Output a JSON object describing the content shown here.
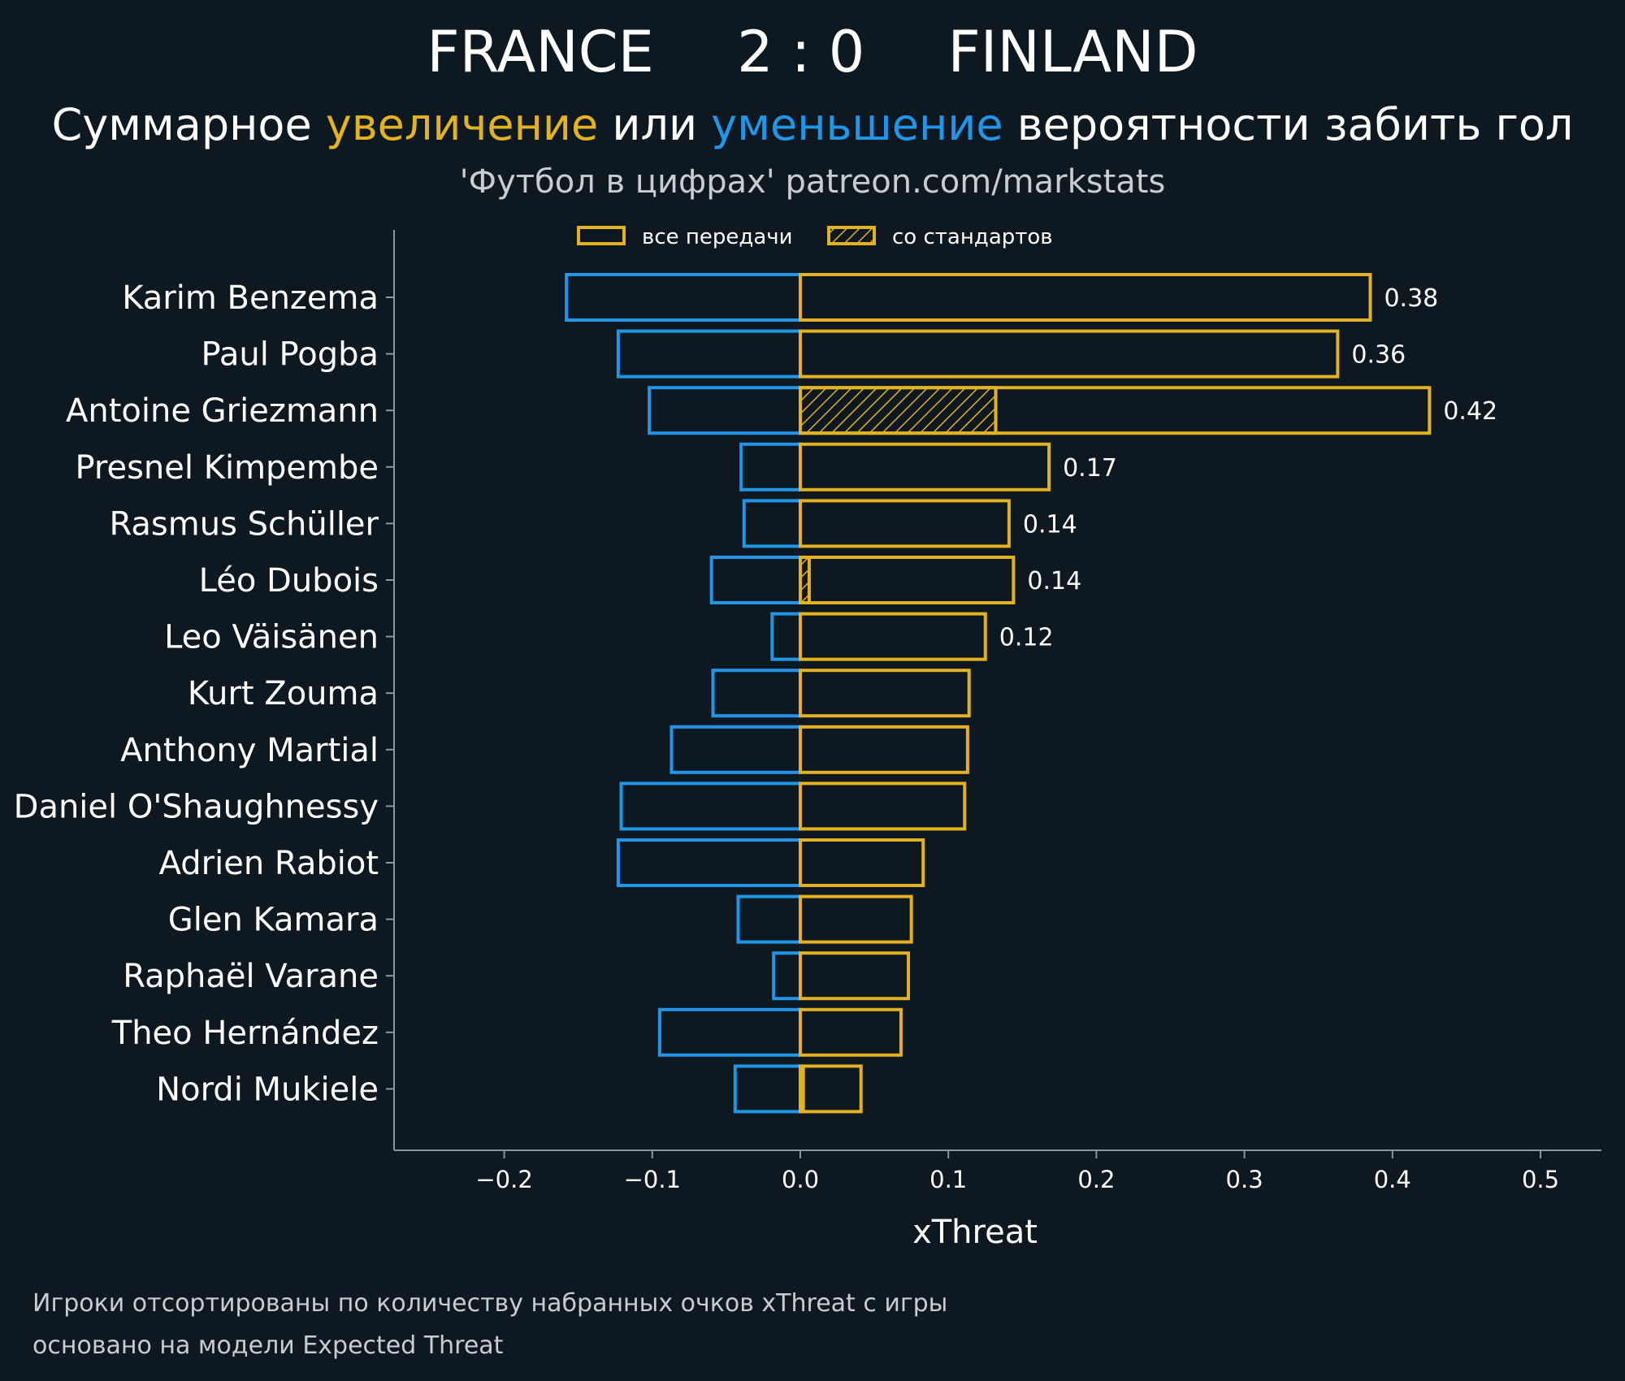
{
  "header": {
    "home_team": "FRANCE",
    "score": "2 : 0",
    "away_team": "FINLAND",
    "subtitle_part1": "Суммарное ",
    "subtitle_increase": "увеличение",
    "subtitle_part2": " или ",
    "subtitle_decrease": "уменьшение",
    "subtitle_part3": " вероятности забить гол",
    "source": "'Футбол в цифрах' patreon.com/markstats"
  },
  "legend": {
    "all_passes": "все передачи",
    "set_pieces": "со стандартов"
  },
  "footnote": {
    "line1": "Игроки отсортированы по количеству набранных очков xThreat с игры",
    "line2": "основано на модели Expected Threat"
  },
  "colors": {
    "background": "#0e1821",
    "increase": "#e3b220",
    "decrease": "#2196e8",
    "axis": "#8a96a3"
  },
  "chart_data": {
    "type": "bar",
    "orientation": "horizontal",
    "xlabel": "xThreat",
    "xlim": [
      -0.275,
      0.54
    ],
    "xticks": [
      -0.2,
      -0.1,
      0.0,
      0.1,
      0.2,
      0.3,
      0.4,
      0.5
    ],
    "xtick_labels": [
      "−0.2",
      "−0.1",
      "0.0",
      "0.1",
      "0.2",
      "0.3",
      "0.4",
      "0.5"
    ],
    "legend_position": "top-center",
    "categories": [
      "Karim Benzema",
      "Paul Pogba",
      "Antoine Griezmann",
      "Presnel Kimpembe",
      "Rasmus Schüller",
      "Léo Dubois",
      "Leo Väisänen",
      "Kurt Zouma",
      "Anthony Martial",
      "Daniel O'Shaughnessy",
      "Adrien Rabiot",
      "Glen Kamara",
      "Raphaël Varane",
      "Theo Hernández",
      "Nordi Mukiele"
    ],
    "series": [
      {
        "name": "все передачи",
        "increase": [
          0.385,
          0.363,
          0.425,
          0.168,
          0.141,
          0.144,
          0.125,
          0.114,
          0.113,
          0.111,
          0.083,
          0.075,
          0.073,
          0.068,
          0.041
        ],
        "decrease": [
          -0.158,
          -0.123,
          -0.102,
          -0.04,
          -0.038,
          -0.06,
          -0.019,
          -0.059,
          -0.087,
          -0.121,
          -0.123,
          -0.042,
          -0.018,
          -0.095,
          -0.044
        ]
      },
      {
        "name": "со стандартов",
        "increase": [
          0,
          0,
          0.132,
          0,
          0,
          0.006,
          0,
          0,
          0,
          0,
          0,
          0,
          0,
          0,
          0.002
        ]
      }
    ],
    "value_labels": [
      "0.38",
      "0.36",
      "0.42",
      "0.17",
      "0.14",
      "0.14",
      "0.12",
      "",
      "",
      "",
      "",
      "",
      "",
      "",
      ""
    ]
  }
}
